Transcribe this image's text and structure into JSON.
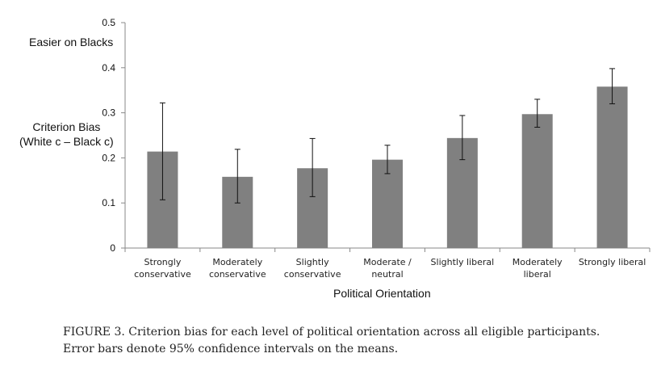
{
  "chart_data": {
    "type": "bar",
    "categories": [
      [
        "Strongly",
        "conservative"
      ],
      [
        "Moderately",
        "conservative"
      ],
      [
        "Slightly",
        "conservative"
      ],
      [
        "Moderate /",
        "neutral"
      ],
      [
        "Slightly liberal"
      ],
      [
        "Moderately",
        "liberal"
      ],
      [
        "Strongly liberal"
      ]
    ],
    "values": [
      0.214,
      0.158,
      0.177,
      0.196,
      0.244,
      0.297,
      0.358
    ],
    "error_low": [
      0.107,
      0.1,
      0.114,
      0.165,
      0.196,
      0.268,
      0.32
    ],
    "error_high": [
      0.322,
      0.219,
      0.243,
      0.228,
      0.294,
      0.33,
      0.398
    ],
    "ylim": [
      0,
      0.5
    ],
    "yticks": [
      0,
      0.1,
      0.2,
      0.3,
      0.4,
      0.5
    ],
    "ytick_labels": [
      "0",
      "0.1",
      "0.2",
      "0.3",
      "0.4",
      "0.5"
    ],
    "annotation_top": "Easier on Blacks",
    "ylabel_lines": [
      "Criterion Bias",
      "(White c – Black c)"
    ],
    "xlabel": "Political Orientation",
    "grid": false,
    "bar_color": "#808080"
  },
  "caption": {
    "line1": "FIGURE 3. Criterion bias for each level of political orientation across all eligible participants.",
    "line2": "Error bars denote 95% confidence intervals on the means."
  }
}
